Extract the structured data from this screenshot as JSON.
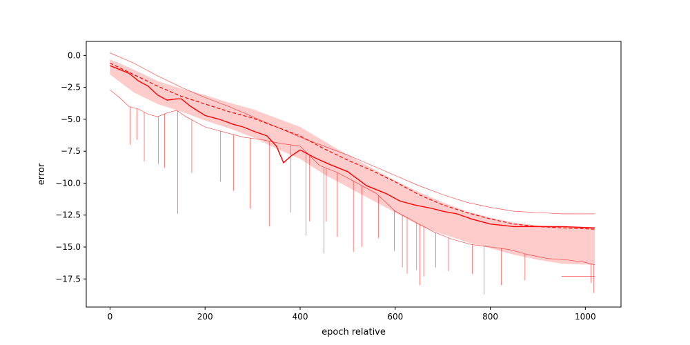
{
  "chart_data": {
    "type": "line",
    "title": "",
    "xlabel": "epoch relative",
    "ylabel": "error",
    "xlim": [
      -50,
      1075
    ],
    "ylim": [
      -19.7,
      1.1
    ],
    "xticks": [
      0,
      200,
      400,
      600,
      800,
      1000
    ],
    "yticks": [
      0.0,
      -2.5,
      -5.0,
      -7.5,
      -10.0,
      -12.5,
      -15.0,
      -17.5
    ],
    "xtick_labels": [
      "0",
      "200",
      "400",
      "600",
      "800",
      "1000"
    ],
    "ytick_labels": [
      "0.0",
      "−2.5",
      "−5.0",
      "−7.5",
      "−10.0",
      "−12.5",
      "−15.0",
      "−17.5"
    ],
    "grid": false,
    "legend": "none",
    "colors": {
      "line": "#ff0000",
      "band": "#ffcccc"
    },
    "series": [
      {
        "role": "max",
        "style": "thin",
        "x": [
          0,
          50,
          100,
          150,
          200,
          250,
          300,
          350,
          400,
          450,
          500,
          550,
          600,
          650,
          700,
          750,
          800,
          850,
          900,
          950,
          1020
        ],
        "values": [
          0.2,
          -0.6,
          -1.6,
          -2.5,
          -3.3,
          -4.0,
          -4.8,
          -5.6,
          -6.4,
          -7.1,
          -7.8,
          -8.6,
          -9.4,
          -10.2,
          -10.9,
          -11.5,
          -11.9,
          -12.2,
          -12.3,
          -12.4,
          -12.4
        ]
      },
      {
        "role": "mean",
        "style": "dashed",
        "x": [
          0,
          50,
          100,
          150,
          200,
          250,
          300,
          350,
          400,
          450,
          500,
          550,
          600,
          650,
          700,
          750,
          800,
          850,
          900,
          950,
          1020
        ],
        "values": [
          -0.6,
          -1.5,
          -2.4,
          -3.2,
          -3.8,
          -4.4,
          -4.9,
          -5.6,
          -6.3,
          -7.3,
          -8.2,
          -9.0,
          -9.9,
          -10.9,
          -11.7,
          -12.3,
          -12.8,
          -13.2,
          -13.4,
          -13.5,
          -13.6
        ]
      },
      {
        "role": "median",
        "style": "solid",
        "x": [
          0,
          20,
          40,
          60,
          80,
          100,
          120,
          140,
          150,
          170,
          200,
          230,
          260,
          280,
          300,
          330,
          350,
          365,
          380,
          400,
          430,
          460,
          500,
          540,
          580,
          610,
          640,
          680,
          700,
          730,
          760,
          800,
          850,
          900,
          950,
          1020
        ],
        "values": [
          -0.8,
          -1.1,
          -1.4,
          -2.0,
          -2.4,
          -3.1,
          -3.5,
          -3.4,
          -3.4,
          -4.0,
          -4.7,
          -5.0,
          -5.4,
          -5.6,
          -5.9,
          -6.3,
          -7.1,
          -8.4,
          -7.9,
          -7.4,
          -8.0,
          -8.5,
          -9.1,
          -10.2,
          -10.8,
          -11.4,
          -11.7,
          -12.0,
          -12.2,
          -12.4,
          -12.8,
          -13.2,
          -13.4,
          -13.4,
          -13.4,
          -13.5
        ]
      },
      {
        "role": "min",
        "style": "thin",
        "x": [
          0,
          20,
          40,
          60,
          80,
          100,
          120,
          140,
          160,
          180,
          200,
          240,
          280,
          320,
          360,
          400,
          440,
          480,
          520,
          560,
          600,
          640,
          680,
          720,
          760,
          800,
          840,
          880,
          920,
          960,
          1000,
          1020
        ],
        "values": [
          -2.7,
          -3.3,
          -4.0,
          -4.2,
          -4.6,
          -4.8,
          -4.5,
          -4.3,
          -4.8,
          -5.2,
          -5.6,
          -6.0,
          -6.4,
          -6.6,
          -6.9,
          -7.1,
          -8.6,
          -9.2,
          -10.0,
          -10.8,
          -12.2,
          -13.0,
          -13.8,
          -14.4,
          -14.8,
          -15.0,
          -15.2,
          -15.6,
          -15.9,
          -16.0,
          -16.2,
          -16.4
        ]
      },
      {
        "role": "band_upper",
        "x": [
          0,
          50,
          100,
          150,
          200,
          250,
          300,
          350,
          400,
          450,
          500,
          550,
          600,
          650,
          700,
          750,
          800,
          850,
          900,
          950,
          1020
        ],
        "values": [
          -0.3,
          -1.1,
          -2.0,
          -2.6,
          -3.1,
          -3.7,
          -4.2,
          -4.9,
          -5.6,
          -6.7,
          -7.8,
          -8.8,
          -9.8,
          -10.7,
          -11.5,
          -12.2,
          -12.7,
          -13.1,
          -13.3,
          -13.4,
          -13.5
        ]
      },
      {
        "role": "band_lower",
        "x": [
          0,
          50,
          100,
          150,
          200,
          250,
          300,
          350,
          400,
          450,
          500,
          550,
          600,
          650,
          700,
          750,
          800,
          850,
          900,
          950,
          1020
        ],
        "values": [
          -1.5,
          -2.9,
          -3.8,
          -4.4,
          -5.1,
          -5.7,
          -6.4,
          -7.3,
          -8.1,
          -9.3,
          -10.3,
          -11.3,
          -12.3,
          -13.3,
          -14.0,
          -14.6,
          -15.1,
          -15.6,
          -16.0,
          -16.3,
          -16.4
        ]
      }
    ],
    "spikes": {
      "x": [
        42,
        57,
        72,
        102,
        115,
        142,
        172,
        232,
        260,
        295,
        335,
        380,
        412,
        420,
        450,
        455,
        478,
        512,
        530,
        565,
        598,
        615,
        625,
        645,
        652,
        660,
        685,
        712,
        762,
        787,
        823,
        873,
        1012,
        1018
      ],
      "values": [
        -7.0,
        -6.6,
        -8.3,
        -8.5,
        -8.8,
        -12.4,
        -9.2,
        -9.9,
        -10.6,
        -12.0,
        -13.4,
        -12.3,
        -14.1,
        -13.0,
        -15.5,
        -13.0,
        -14.2,
        -15.4,
        -15.0,
        -14.3,
        -15.3,
        -16.6,
        -17.1,
        -16.8,
        -18.0,
        -17.3,
        -16.6,
        -16.9,
        -17.1,
        -18.7,
        -18.0,
        -17.6,
        -17.8,
        -18.6
      ]
    },
    "tail_floor": {
      "x": [
        950,
        1020
      ],
      "values": [
        -17.3,
        -17.3
      ]
    }
  }
}
